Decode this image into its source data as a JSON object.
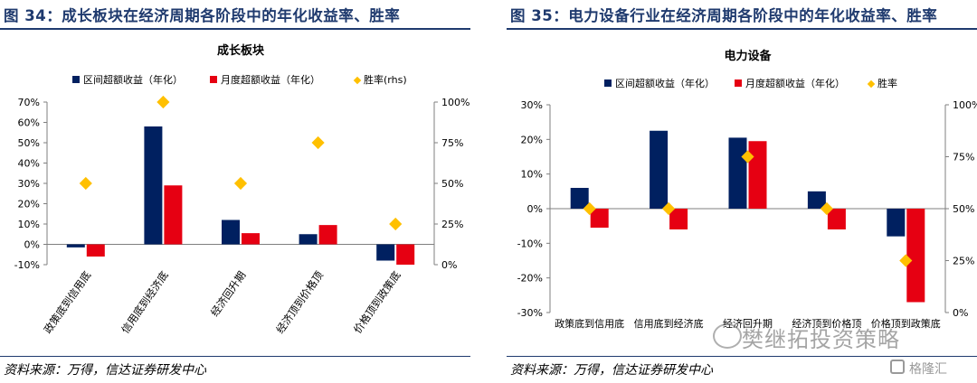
{
  "panels": [
    {
      "figure_title": "图 34：成长板块在经济周期各阶段中的年化收益率、胜率",
      "source": "资料来源：万得，信达证券研发中心"
    },
    {
      "figure_title": "图 35：电力设备行业在经济周期各阶段中的年化收益率、胜率",
      "source": "资料来源：万得，信达证券研发中心"
    }
  ],
  "watermark": "樊继拓投资策略",
  "logo_text": "格隆汇",
  "colors": {
    "navy": "#002060",
    "red": "#e60012",
    "diamond": "#ffc000",
    "title": "#1f3a6e"
  },
  "chart_data": [
    {
      "type": "bar",
      "title": "成长板块",
      "categories": [
        "政策底到信用底",
        "信用底到经济底",
        "经济回升期",
        "经济顶到价格顶",
        "价格顶到政策底"
      ],
      "series": [
        {
          "name": "区间超额收益（年化）",
          "values": [
            -0.015,
            0.58,
            0.12,
            0.05,
            -0.08
          ],
          "color": "#002060"
        },
        {
          "name": "月度超额收益（年化）",
          "values": [
            -0.06,
            0.29,
            0.055,
            0.095,
            -0.1
          ],
          "color": "#e60012"
        },
        {
          "name": "胜率(rhs)",
          "values": [
            0.5,
            1.0,
            0.5,
            0.75,
            0.25
          ],
          "axis": "right",
          "marker": "diamond",
          "color": "#ffc000"
        }
      ],
      "left_axis": {
        "min": -0.1,
        "max": 0.7,
        "ticks": [
          "-10%",
          "0%",
          "10%",
          "20%",
          "30%",
          "40%",
          "50%",
          "60%",
          "70%"
        ]
      },
      "right_axis": {
        "min": 0,
        "max": 1.0,
        "ticks": [
          "0%",
          "25%",
          "50%",
          "75%",
          "100%"
        ]
      },
      "xlabel_rotation": "rotated",
      "legend": "top",
      "grid": false
    },
    {
      "type": "bar",
      "title": "电力设备",
      "categories": [
        "政策底到信用底",
        "信用底到经济底",
        "经济回升期",
        "经济顶到价格顶",
        "价格顶到政策底"
      ],
      "series": [
        {
          "name": "区间超额收益（年化）",
          "values": [
            0.06,
            0.225,
            0.205,
            0.05,
            -0.08
          ],
          "color": "#002060"
        },
        {
          "name": "月度超额收益（年化）",
          "values": [
            -0.055,
            -0.06,
            0.195,
            -0.06,
            -0.27
          ],
          "color": "#e60012"
        },
        {
          "name": "胜率",
          "values": [
            0.5,
            0.5,
            0.75,
            0.5,
            0.25
          ],
          "axis": "right",
          "marker": "diamond",
          "color": "#ffc000"
        }
      ],
      "left_axis": {
        "min": -0.3,
        "max": 0.3,
        "ticks": [
          "-30%",
          "-20%",
          "-10%",
          "0%",
          "10%",
          "20%",
          "30%"
        ]
      },
      "right_axis": {
        "min": 0,
        "max": 1.0,
        "ticks": [
          "0%",
          "25%",
          "50%",
          "75%",
          "100%"
        ]
      },
      "xlabel_rotation": "horizontal",
      "legend": "top",
      "grid": false
    }
  ]
}
